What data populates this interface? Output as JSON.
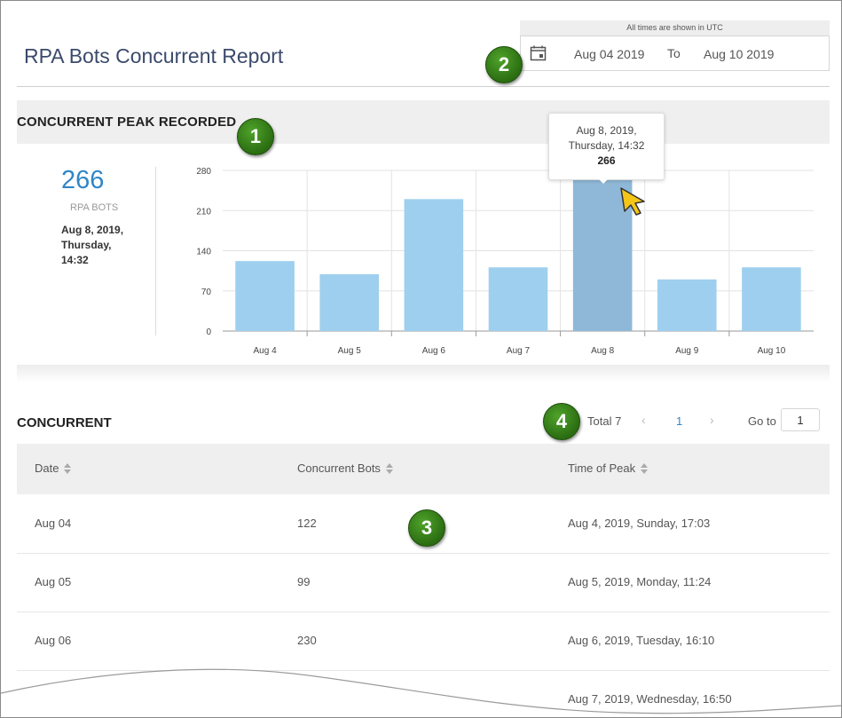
{
  "header": {
    "title": "RPA Bots Concurrent Report",
    "utc_note": "All times are shown in UTC",
    "date_from": "Aug 04 2019",
    "date_to_label": "To",
    "date_to": "Aug 10 2019",
    "calendar_icon": "calendar-icon"
  },
  "peak": {
    "section_title": "CONCURRENT PEAK RECORDED",
    "value": "266",
    "label": "RPA BOTS",
    "time": "Aug 8, 2019, Thursday, 14:32"
  },
  "chart_data": {
    "type": "bar",
    "categories": [
      "Aug 4",
      "Aug 5",
      "Aug 6",
      "Aug 7",
      "Aug 8",
      "Aug 9",
      "Aug 10"
    ],
    "values": [
      122,
      99,
      230,
      111,
      266,
      90,
      111
    ],
    "yticks": [
      "280",
      "210",
      "140",
      "70",
      "0"
    ],
    "ylim": [
      0,
      280
    ],
    "highlighted_index": 4,
    "bar_color": "#9fcfee",
    "highlight_color": "#8fb8d8",
    "grid": true
  },
  "tooltip": {
    "line1": "Aug 8, 2019,",
    "line2": "Thursday, 14:32",
    "value": "266"
  },
  "table": {
    "title": "CONCURRENT",
    "pager": {
      "total": "Total 7",
      "prev_icon": "‹",
      "page": "1",
      "next_icon": "›",
      "goto_label": "Go to",
      "goto_value": "1"
    },
    "columns": [
      "Date",
      "Concurrent Bots",
      "Time of Peak"
    ],
    "rows": [
      {
        "date": "Aug 04",
        "bots": "122",
        "peak": "Aug 4, 2019, Sunday, 17:03"
      },
      {
        "date": "Aug 05",
        "bots": "99",
        "peak": "Aug 5, 2019, Monday, 11:24"
      },
      {
        "date": "Aug 06",
        "bots": "230",
        "peak": "Aug 6, 2019, Tuesday, 16:10"
      },
      {
        "date": "",
        "bots": "",
        "peak": "Aug 7, 2019, Wednesday, 16:50"
      }
    ]
  },
  "callouts": [
    "1",
    "2",
    "3",
    "4"
  ],
  "colors": {
    "accent": "#2f86c8",
    "callout_green": "#3a8a1e",
    "cursor_yellow": "#f5c518"
  }
}
